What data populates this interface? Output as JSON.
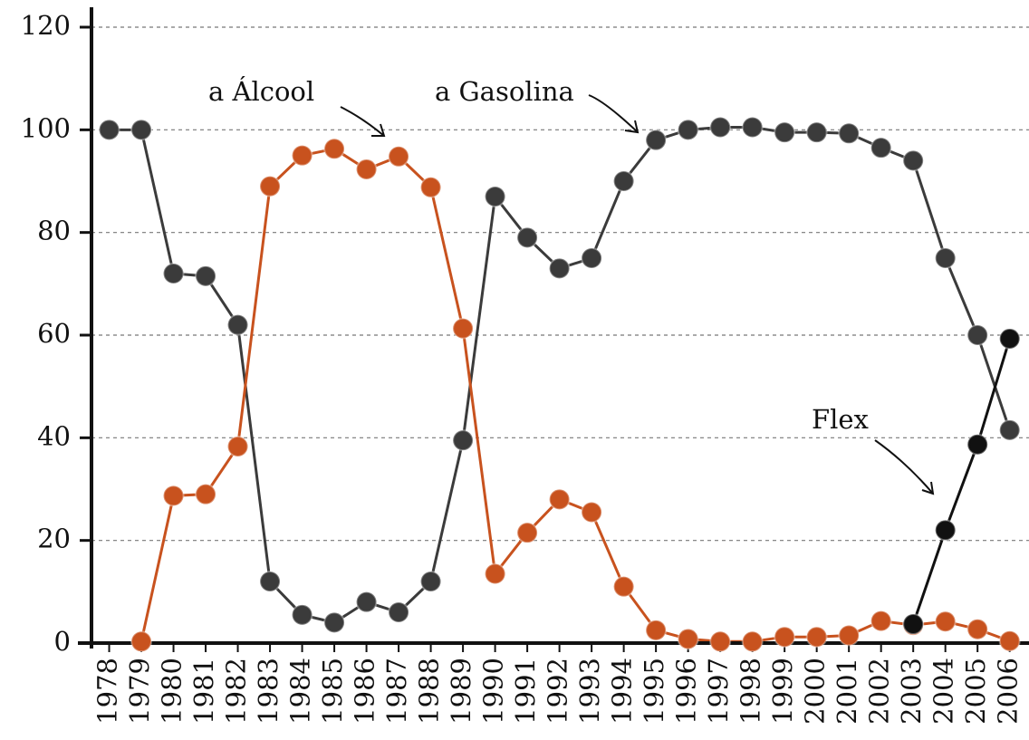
{
  "chart_data": {
    "type": "line",
    "x": [
      1978,
      1979,
      1980,
      1981,
      1982,
      1983,
      1984,
      1985,
      1986,
      1987,
      1988,
      1989,
      1990,
      1991,
      1992,
      1993,
      1994,
      1995,
      1996,
      1997,
      1998,
      1999,
      2000,
      2001,
      2002,
      2003,
      2004,
      2005,
      2006
    ],
    "xlim": [
      1977.45,
      2006.6
    ],
    "ylim": [
      0,
      120
    ],
    "yticks": [
      0,
      20,
      40,
      60,
      80,
      100,
      120
    ],
    "grid": true,
    "series": [
      {
        "name": "a Gasolina",
        "color": "#3b3b3b",
        "values": [
          100,
          100,
          72,
          71.5,
          62,
          12,
          5.5,
          4,
          8,
          6,
          12,
          39.5,
          87,
          79,
          73,
          75,
          90,
          98,
          100,
          100.5,
          100.5,
          99.5,
          99.5,
          99.3,
          96.5,
          94,
          75,
          60,
          41.5
        ]
      },
      {
        "name": "a Álcool",
        "color": "#c8521e",
        "values": [
          null,
          0.3,
          28.7,
          29,
          38.3,
          89,
          95,
          96.3,
          92.3,
          94.8,
          88.8,
          61.3,
          13.5,
          21.5,
          28,
          25.5,
          11,
          2.5,
          0.8,
          0.3,
          0.3,
          1.2,
          1.2,
          1.5,
          4.3,
          3.5,
          4.2,
          2.7,
          0.4
        ]
      },
      {
        "name": "Flex",
        "color": "#111111",
        "values": [
          null,
          null,
          null,
          null,
          null,
          null,
          null,
          null,
          null,
          null,
          null,
          null,
          null,
          null,
          null,
          null,
          null,
          null,
          null,
          null,
          null,
          null,
          null,
          null,
          null,
          3.7,
          22,
          38.7,
          59.3
        ]
      }
    ]
  }
}
